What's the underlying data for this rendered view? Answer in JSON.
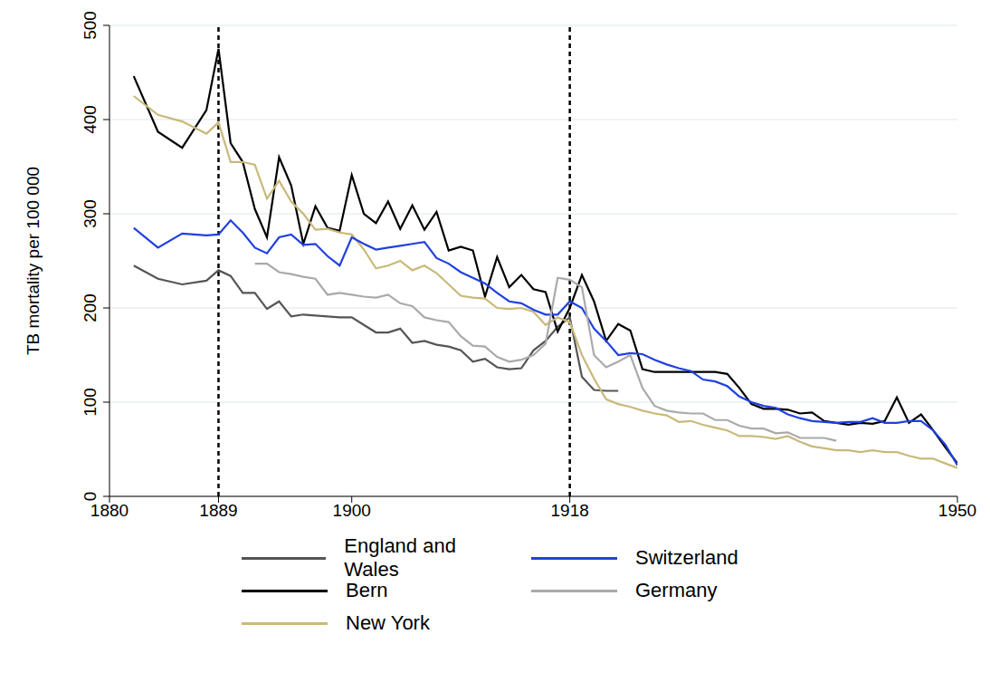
{
  "chart_data": {
    "type": "line",
    "y_label": "TB mortality per 100 000",
    "xlim": [
      1880,
      1950
    ],
    "xticks": [
      1880,
      1889,
      1900,
      1918,
      1950
    ],
    "ylim": [
      0,
      500
    ],
    "yticks": [
      0,
      100,
      200,
      300,
      400,
      500
    ],
    "grid": true,
    "legend": "bottom",
    "vlines": [
      1889,
      1918
    ],
    "x": [
      1882,
      1884,
      1886,
      1888,
      1889,
      1890,
      1891,
      1892,
      1893,
      1894,
      1895,
      1896,
      1897,
      1898,
      1899,
      1900,
      1901,
      1902,
      1903,
      1904,
      1905,
      1906,
      1907,
      1908,
      1909,
      1910,
      1911,
      1912,
      1913,
      1914,
      1915,
      1916,
      1917,
      1918,
      1919,
      1920,
      1921,
      1922,
      1923,
      1924,
      1925,
      1926,
      1927,
      1928,
      1929,
      1930,
      1931,
      1932,
      1933,
      1934,
      1935,
      1936,
      1937,
      1938,
      1939,
      1940,
      1941,
      1942,
      1943,
      1944,
      1945,
      1946,
      1947,
      1948,
      1949,
      1950
    ],
    "series": [
      {
        "name": "England and Wales",
        "color": "#555555",
        "values": [
          245,
          231,
          225,
          229,
          240,
          234,
          216,
          216,
          199,
          207,
          191,
          193,
          192,
          191,
          190,
          190,
          182,
          174,
          174,
          178,
          163,
          165,
          161,
          159,
          155,
          143,
          146,
          137,
          135,
          136,
          155,
          165,
          180,
          190,
          127,
          113,
          112,
          112,
          null,
          null,
          null,
          null,
          null,
          null,
          null,
          null,
          null,
          null,
          null,
          null,
          null,
          null,
          null,
          null,
          null,
          null,
          null,
          null,
          null,
          null,
          null,
          null,
          null,
          null,
          null,
          null
        ]
      },
      {
        "name": "Bern",
        "color": "#000000",
        "values": [
          446,
          387,
          370,
          410,
          475,
          375,
          355,
          305,
          275,
          360,
          330,
          268,
          308,
          285,
          282,
          341,
          300,
          290,
          313,
          284,
          309,
          283,
          302,
          261,
          265,
          261,
          212,
          254,
          222,
          235,
          220,
          217,
          175,
          200,
          235,
          207,
          165,
          183,
          176,
          135,
          132,
          132,
          132,
          132,
          132,
          132,
          130,
          115,
          98,
          93,
          93,
          92,
          88,
          89,
          80,
          78,
          76,
          78,
          77,
          80,
          105,
          78,
          87,
          70,
          52,
          35
        ]
      },
      {
        "name": "New York",
        "color": "#c9b97a",
        "values": [
          425,
          405,
          398,
          385,
          397,
          355,
          355,
          352,
          316,
          335,
          313,
          300,
          283,
          284,
          280,
          278,
          262,
          242,
          245,
          250,
          240,
          245,
          237,
          225,
          213,
          211,
          210,
          200,
          199,
          200,
          196,
          182,
          190,
          185,
          150,
          125,
          103,
          98,
          95,
          91,
          88,
          86,
          79,
          80,
          76,
          73,
          70,
          64,
          64,
          63,
          61,
          64,
          58,
          53,
          51,
          49,
          49,
          47,
          49,
          47,
          47,
          43,
          40,
          40,
          35,
          30
        ]
      },
      {
        "name": "Switzerland",
        "color": "#2040e0",
        "values": [
          285,
          264,
          279,
          277,
          278,
          293,
          280,
          264,
          258,
          275,
          278,
          267,
          268,
          255,
          245,
          275,
          268,
          262,
          264,
          266,
          268,
          270,
          253,
          247,
          238,
          232,
          226,
          216,
          207,
          205,
          198,
          193,
          193,
          207,
          200,
          178,
          165,
          150,
          152,
          151,
          145,
          140,
          136,
          133,
          124,
          122,
          117,
          106,
          100,
          96,
          94,
          87,
          83,
          80,
          79,
          78,
          79,
          79,
          83,
          78,
          78,
          80,
          80,
          70,
          55,
          33
        ]
      },
      {
        "name": "Germany",
        "color": "#aaaaaa",
        "values": [
          null,
          null,
          null,
          null,
          null,
          null,
          null,
          247,
          247,
          238,
          236,
          233,
          231,
          214,
          216,
          214,
          212,
          211,
          214,
          205,
          202,
          190,
          187,
          185,
          170,
          160,
          159,
          148,
          143,
          145,
          150,
          162,
          232,
          230,
          222,
          150,
          137,
          143,
          150,
          115,
          96,
          91,
          89,
          88,
          88,
          81,
          81,
          75,
          72,
          72,
          67,
          68,
          62,
          62,
          62,
          59,
          null,
          null,
          null,
          null,
          null,
          null,
          null,
          null,
          null,
          null
        ]
      }
    ]
  }
}
